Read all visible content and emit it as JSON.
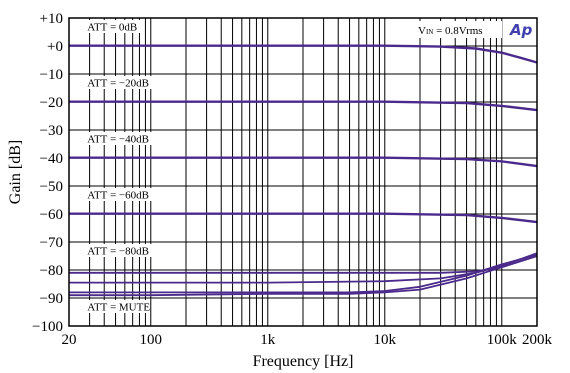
{
  "chart_data": {
    "type": "line",
    "title": "",
    "xlabel": "Frequency [Hz]",
    "ylabel": "Gain [dB]",
    "xscale": "log",
    "xlim": [
      20,
      200000
    ],
    "ylim": [
      -100,
      10
    ],
    "grid": true,
    "x_tick_labels": [
      {
        "value": 20,
        "label": "20"
      },
      {
        "value": 100,
        "label": "100"
      },
      {
        "value": 1000,
        "label": "1k"
      },
      {
        "value": 10000,
        "label": "10k"
      },
      {
        "value": 100000,
        "label": "100k"
      },
      {
        "value": 200000,
        "label": "200k"
      }
    ],
    "y_tick_labels": [
      {
        "value": 10,
        "label": "+10"
      },
      {
        "value": 0,
        "label": "+0"
      },
      {
        "value": -10,
        "label": "−10"
      },
      {
        "value": -20,
        "label": "−20"
      },
      {
        "value": -30,
        "label": "−30"
      },
      {
        "value": -40,
        "label": "−40"
      },
      {
        "value": -50,
        "label": "−50"
      },
      {
        "value": -60,
        "label": "−60"
      },
      {
        "value": -70,
        "label": "−70"
      },
      {
        "value": -80,
        "label": "−80"
      },
      {
        "value": -90,
        "label": "−90"
      },
      {
        "value": -100,
        "label": "−100"
      }
    ],
    "line_color": "#4b2a8c",
    "series": [
      {
        "x": [
          20,
          1000,
          10000,
          30000,
          60000,
          100000,
          150000,
          200000
        ],
        "values": [
          0,
          0,
          0,
          -0.3,
          -1,
          -2.5,
          -4.5,
          -6
        ]
      },
      {
        "x": [
          20,
          1000,
          10000,
          30000,
          60000,
          100000,
          150000,
          200000
        ],
        "values": [
          0.2,
          0.2,
          0.2,
          -0.1,
          -0.8,
          -2.3,
          -4.3,
          -5.8
        ]
      },
      {
        "x": [
          20,
          1000,
          10000,
          50000,
          100000,
          200000
        ],
        "values": [
          -20,
          -20,
          -20,
          -20.5,
          -21.5,
          -23
        ]
      },
      {
        "x": [
          20,
          1000,
          10000,
          50000,
          100000,
          200000
        ],
        "values": [
          -19.8,
          -19.8,
          -19.8,
          -20.3,
          -21.3,
          -22.8
        ]
      },
      {
        "x": [
          20,
          1000,
          10000,
          50000,
          100000,
          200000
        ],
        "values": [
          -40,
          -40,
          -40,
          -40.5,
          -41.3,
          -43
        ]
      },
      {
        "x": [
          20,
          1000,
          10000,
          50000,
          100000,
          200000
        ],
        "values": [
          -39.8,
          -39.8,
          -39.8,
          -40.3,
          -41.1,
          -42.8
        ]
      },
      {
        "x": [
          20,
          1000,
          10000,
          50000,
          100000,
          200000
        ],
        "values": [
          -60,
          -60,
          -60,
          -60.5,
          -61.5,
          -63
        ]
      },
      {
        "x": [
          20,
          1000,
          10000,
          50000,
          100000,
          200000
        ],
        "values": [
          -59.8,
          -59.8,
          -59.8,
          -60.3,
          -61.3,
          -62.8
        ]
      },
      {
        "x": [
          20,
          1000,
          10000,
          30000,
          60000,
          100000,
          200000
        ],
        "values": [
          -81,
          -81,
          -81,
          -81,
          -80.5,
          -79,
          -75
        ]
      },
      {
        "x": [
          20,
          1000,
          10000,
          30000,
          60000,
          100000,
          200000
        ],
        "values": [
          -84.5,
          -84.5,
          -84,
          -83,
          -81,
          -78.5,
          -74
        ]
      },
      {
        "x": [
          20,
          1000,
          5000,
          10000,
          20000,
          50000,
          100000,
          200000
        ],
        "values": [
          -88,
          -88,
          -88,
          -87.5,
          -86,
          -82,
          -78,
          -74.5
        ]
      },
      {
        "x": [
          20,
          100,
          1000,
          5000,
          10000,
          20000,
          50000,
          100000,
          200000
        ],
        "values": [
          -89,
          -89,
          -88.5,
          -88.5,
          -88,
          -87,
          -83,
          -79,
          -75
        ]
      }
    ],
    "annotations": [
      {
        "text": "ATT = 0dB",
        "y": 0
      },
      {
        "text": "ATT = −20dB",
        "y": -20
      },
      {
        "text": "ATT = −40dB",
        "y": -40
      },
      {
        "text": "ATT = −60dB",
        "y": -60
      },
      {
        "text": "ATT = −80dB",
        "y": -80
      },
      {
        "text": "ATT = MUTE",
        "y": -100
      }
    ],
    "vin_label": {
      "main": "V",
      "sub": "IN",
      "rest": " = 0.8Vrms"
    },
    "logo": "Ap"
  }
}
